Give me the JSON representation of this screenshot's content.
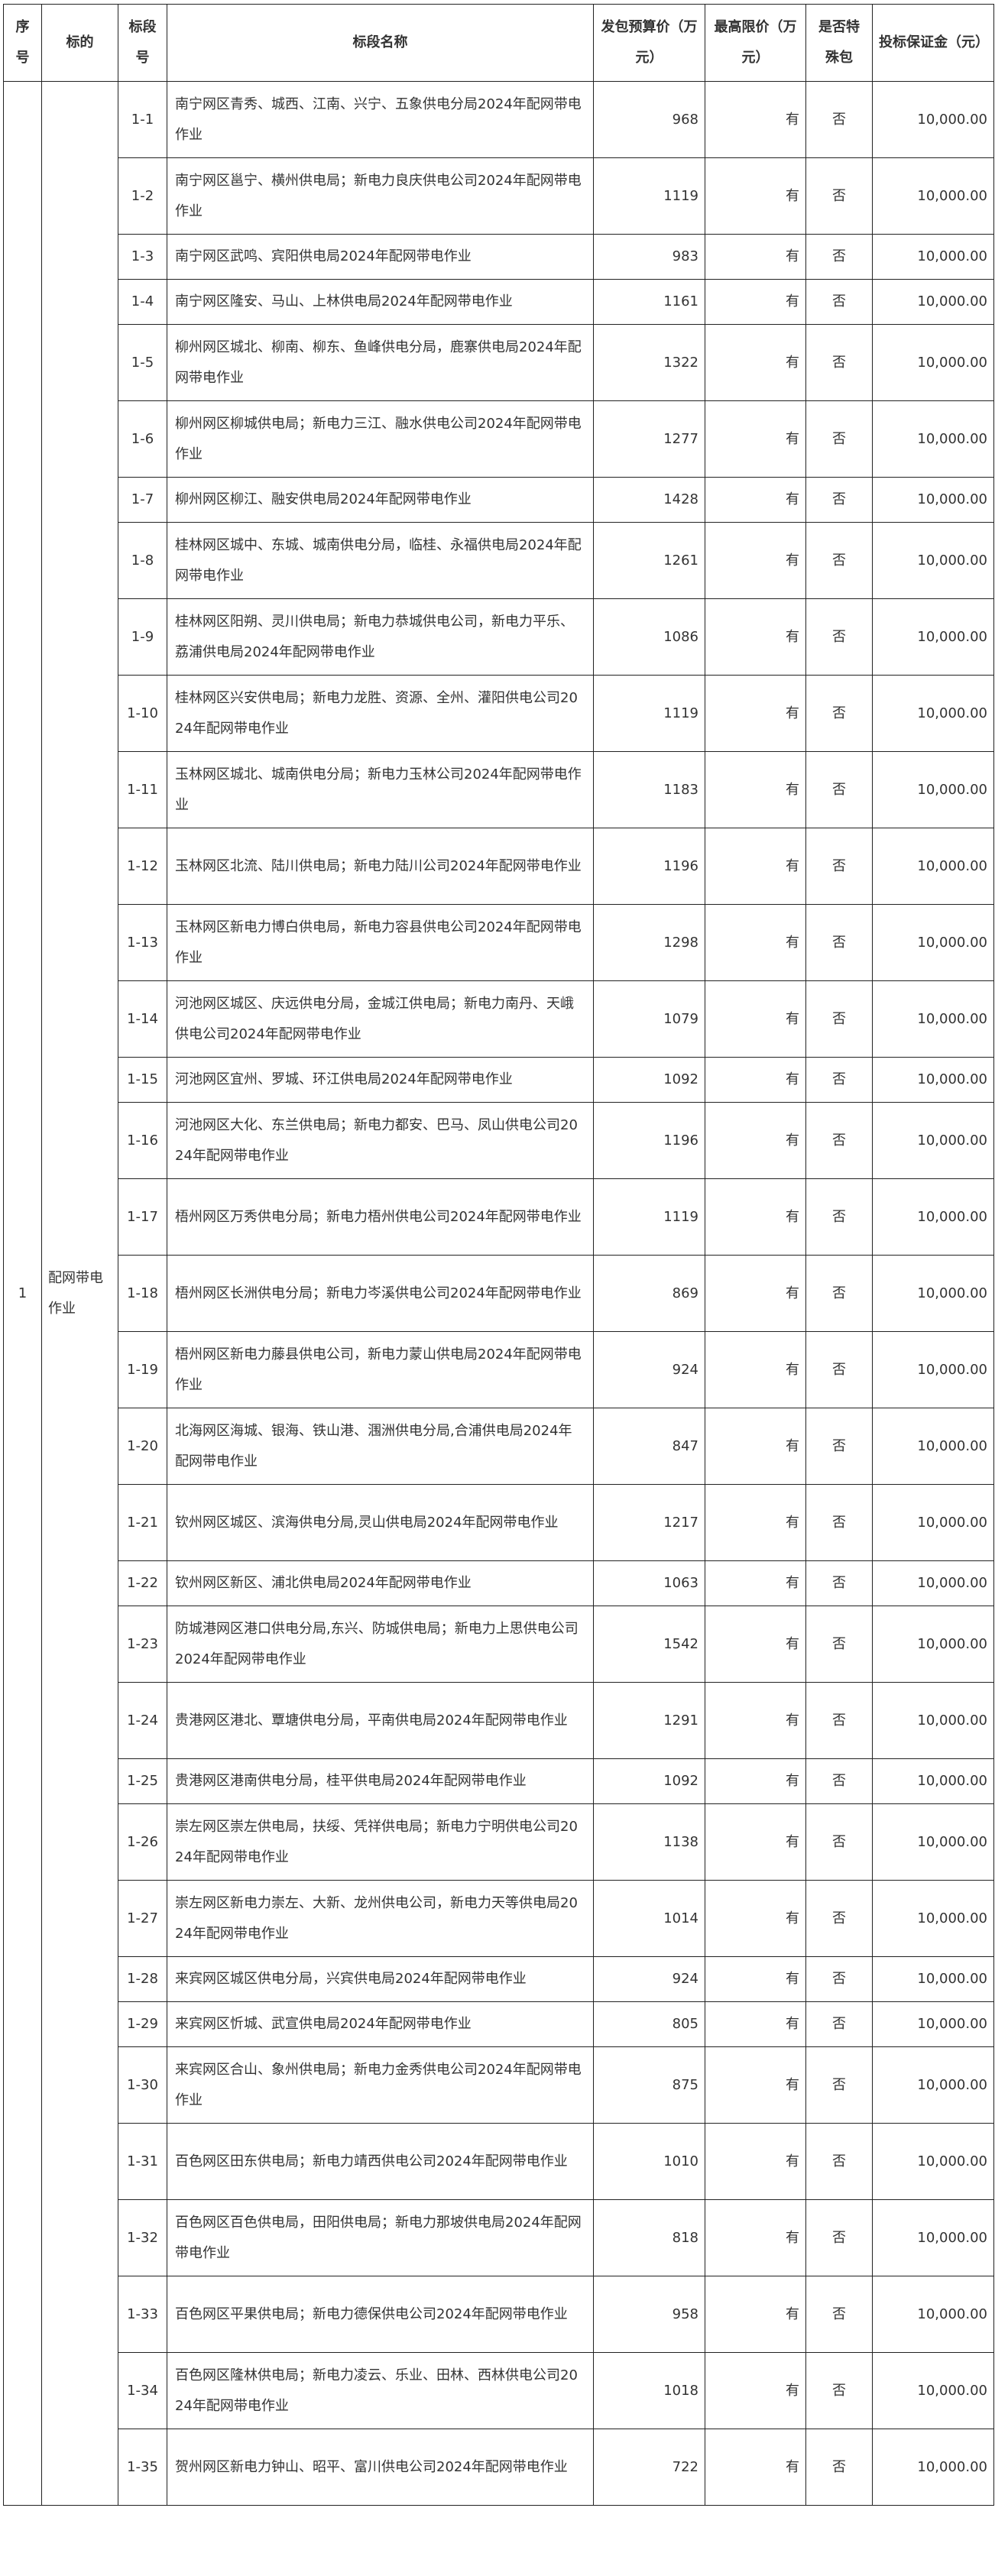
{
  "headers": [
    "序号",
    "标的",
    "标段号",
    "标段名称",
    "发包预算价（万元）",
    "最高限价（万元）",
    "是否特殊包",
    "投标保证金（元）"
  ],
  "group": {
    "index": "1",
    "subject": "配网带电作业"
  },
  "rows": [
    {
      "no": "1-1",
      "name": "南宁网区青秀、城西、江南、兴宁、五象供电分局2024年配网带电作业",
      "budget": "968",
      "limit": "有",
      "special": "否",
      "deposit": "10,000.00",
      "lines": 2
    },
    {
      "no": "1-2",
      "name": "南宁网区邕宁、横州供电局；新电力良庆供电公司2024年配网带电作业",
      "budget": "1119",
      "limit": "有",
      "special": "否",
      "deposit": "10,000.00",
      "lines": 2
    },
    {
      "no": "1-3",
      "name": "南宁网区武鸣、宾阳供电局2024年配网带电作业",
      "budget": "983",
      "limit": "有",
      "special": "否",
      "deposit": "10,000.00",
      "lines": 1
    },
    {
      "no": "1-4",
      "name": "南宁网区隆安、马山、上林供电局2024年配网带电作业",
      "budget": "1161",
      "limit": "有",
      "special": "否",
      "deposit": "10,000.00",
      "lines": 1
    },
    {
      "no": "1-5",
      "name": "柳州网区城北、柳南、柳东、鱼峰供电分局，鹿寨供电局2024年配网带电作业",
      "budget": "1322",
      "limit": "有",
      "special": "否",
      "deposit": "10,000.00",
      "lines": 2
    },
    {
      "no": "1-6",
      "name": "柳州网区柳城供电局；新电力三江、融水供电公司2024年配网带电作业",
      "budget": "1277",
      "limit": "有",
      "special": "否",
      "deposit": "10,000.00",
      "lines": 2
    },
    {
      "no": "1-7",
      "name": "柳州网区柳江、融安供电局2024年配网带电作业",
      "budget": "1428",
      "limit": "有",
      "special": "否",
      "deposit": "10,000.00",
      "lines": 1
    },
    {
      "no": "1-8",
      "name": "桂林网区城中、东城、城南供电分局，临桂、永福供电局2024年配网带电作业",
      "budget": "1261",
      "limit": "有",
      "special": "否",
      "deposit": "10,000.00",
      "lines": 2
    },
    {
      "no": "1-9",
      "name": "桂林网区阳朔、灵川供电局；新电力恭城供电公司，新电力平乐、荔浦供电局2024年配网带电作业",
      "budget": "1086",
      "limit": "有",
      "special": "否",
      "deposit": "10,000.00",
      "lines": 2
    },
    {
      "no": "1-10",
      "name": "桂林网区兴安供电局；新电力龙胜、资源、全州、灌阳供电公司2024年配网带电作业",
      "budget": "1119",
      "limit": "有",
      "special": "否",
      "deposit": "10,000.00",
      "lines": 2
    },
    {
      "no": "1-11",
      "name": "玉林网区城北、城南供电分局；新电力玉林公司2024年配网带电作业",
      "budget": "1183",
      "limit": "有",
      "special": "否",
      "deposit": "10,000.00",
      "lines": 2
    },
    {
      "no": "1-12",
      "name": "玉林网区北流、陆川供电局；新电力陆川公司2024年配网带电作业",
      "budget": "1196",
      "limit": "有",
      "special": "否",
      "deposit": "10,000.00",
      "lines": 2
    },
    {
      "no": "1-13",
      "name": "玉林网区新电力博白供电局，新电力容县供电公司2024年配网带电作业",
      "budget": "1298",
      "limit": "有",
      "special": "否",
      "deposit": "10,000.00",
      "lines": 2
    },
    {
      "no": "1-14",
      "name": "河池网区城区、庆远供电分局，金城江供电局；新电力南丹、天峨供电公司2024年配网带电作业",
      "budget": "1079",
      "limit": "有",
      "special": "否",
      "deposit": "10,000.00",
      "lines": 2
    },
    {
      "no": "1-15",
      "name": "河池网区宜州、罗城、环江供电局2024年配网带电作业",
      "budget": "1092",
      "limit": "有",
      "special": "否",
      "deposit": "10,000.00",
      "lines": 1
    },
    {
      "no": "1-16",
      "name": "河池网区大化、东兰供电局；新电力都安、巴马、凤山供电公司2024年配网带电作业",
      "budget": "1196",
      "limit": "有",
      "special": "否",
      "deposit": "10,000.00",
      "lines": 2
    },
    {
      "no": "1-17",
      "name": "梧州网区万秀供电分局；新电力梧州供电公司2024年配网带电作业",
      "budget": "1119",
      "limit": "有",
      "special": "否",
      "deposit": "10,000.00",
      "lines": 2
    },
    {
      "no": "1-18",
      "name": "梧州网区长洲供电分局；新电力岑溪供电公司2024年配网带电作业",
      "budget": "869",
      "limit": "有",
      "special": "否",
      "deposit": "10,000.00",
      "lines": 2
    },
    {
      "no": "1-19",
      "name": "梧州网区新电力藤县供电公司，新电力蒙山供电局2024年配网带电作业",
      "budget": "924",
      "limit": "有",
      "special": "否",
      "deposit": "10,000.00",
      "lines": 2
    },
    {
      "no": "1-20",
      "name": "北海网区海城、银海、铁山港、涠洲供电分局,合浦供电局2024年配网带电作业",
      "budget": "847",
      "limit": "有",
      "special": "否",
      "deposit": "10,000.00",
      "lines": 2
    },
    {
      "no": "1-21",
      "name": "钦州网区城区、滨海供电分局,灵山供电局2024年配网带电作业",
      "budget": "1217",
      "limit": "有",
      "special": "否",
      "deposit": "10,000.00",
      "lines": 2
    },
    {
      "no": "1-22",
      "name": "钦州网区新区、浦北供电局2024年配网带电作业",
      "budget": "1063",
      "limit": "有",
      "special": "否",
      "deposit": "10,000.00",
      "lines": 1
    },
    {
      "no": "1-23",
      "name": "防城港网区港口供电分局,东兴、防城供电局；新电力上思供电公司2024年配网带电作业",
      "budget": "1542",
      "limit": "有",
      "special": "否",
      "deposit": "10,000.00",
      "lines": 2
    },
    {
      "no": "1-24",
      "name": "贵港网区港北、覃塘供电分局，平南供电局2024年配网带电作业",
      "budget": "1291",
      "limit": "有",
      "special": "否",
      "deposit": "10,000.00",
      "lines": 2
    },
    {
      "no": "1-25",
      "name": "贵港网区港南供电分局，桂平供电局2024年配网带电作业",
      "budget": "1092",
      "limit": "有",
      "special": "否",
      "deposit": "10,000.00",
      "lines": 1
    },
    {
      "no": "1-26",
      "name": "崇左网区崇左供电局，扶绥、凭祥供电局；新电力宁明供电公司2024年配网带电作业",
      "budget": "1138",
      "limit": "有",
      "special": "否",
      "deposit": "10,000.00",
      "lines": 2
    },
    {
      "no": "1-27",
      "name": "崇左网区新电力崇左、大新、龙州供电公司，新电力天等供电局2024年配网带电作业",
      "budget": "1014",
      "limit": "有",
      "special": "否",
      "deposit": "10,000.00",
      "lines": 2
    },
    {
      "no": "1-28",
      "name": "来宾网区城区供电分局，兴宾供电局2024年配网带电作业",
      "budget": "924",
      "limit": "有",
      "special": "否",
      "deposit": "10,000.00",
      "lines": 1
    },
    {
      "no": "1-29",
      "name": "来宾网区忻城、武宣供电局2024年配网带电作业",
      "budget": "805",
      "limit": "有",
      "special": "否",
      "deposit": "10,000.00",
      "lines": 1
    },
    {
      "no": "1-30",
      "name": "来宾网区合山、象州供电局；新电力金秀供电公司2024年配网带电作业",
      "budget": "875",
      "limit": "有",
      "special": "否",
      "deposit": "10,000.00",
      "lines": 2
    },
    {
      "no": "1-31",
      "name": "百色网区田东供电局；新电力靖西供电公司2024年配网带电作业",
      "budget": "1010",
      "limit": "有",
      "special": "否",
      "deposit": "10,000.00",
      "lines": 2
    },
    {
      "no": "1-32",
      "name": "百色网区百色供电局，田阳供电局；新电力那坡供电局2024年配网带电作业",
      "budget": "818",
      "limit": "有",
      "special": "否",
      "deposit": "10,000.00",
      "lines": 2
    },
    {
      "no": "1-33",
      "name": "百色网区平果供电局；新电力德保供电公司2024年配网带电作业",
      "budget": "958",
      "limit": "有",
      "special": "否",
      "deposit": "10,000.00",
      "lines": 2
    },
    {
      "no": "1-34",
      "name": "百色网区隆林供电局；新电力凌云、乐业、田林、西林供电公司2024年配网带电作业",
      "budget": "1018",
      "limit": "有",
      "special": "否",
      "deposit": "10,000.00",
      "lines": 2
    },
    {
      "no": "1-35",
      "name": "贺州网区新电力钟山、昭平、富川供电公司2024年配网带电作业",
      "budget": "722",
      "limit": "有",
      "special": "否",
      "deposit": "10,000.00",
      "lines": 2
    }
  ]
}
